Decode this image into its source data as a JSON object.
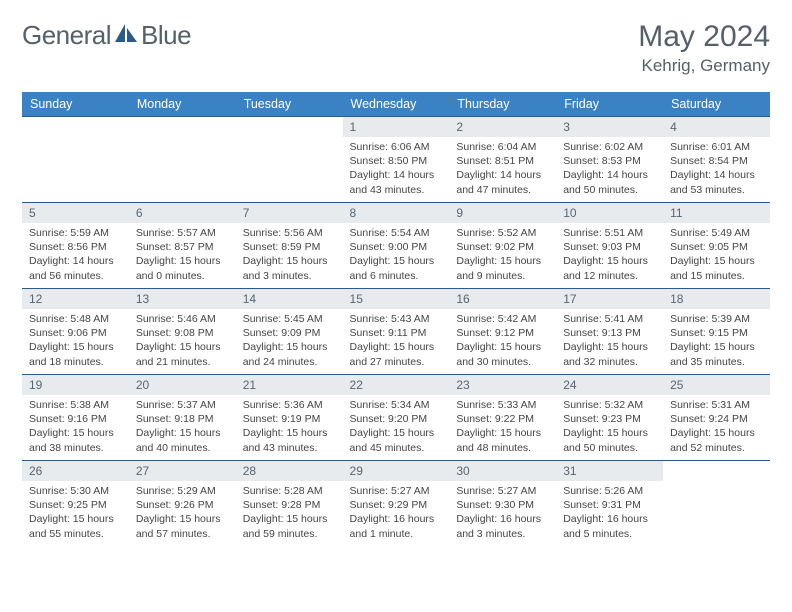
{
  "logo": {
    "word1": "General",
    "word2": "Blue"
  },
  "title": "May 2024",
  "location": "Kehrig, Germany",
  "colors": {
    "header_bg": "#3b82c4",
    "header_text": "#ffffff",
    "border": "#2a5a8a",
    "daynum_bg": "#e8ebee",
    "text": "#55606a",
    "logo_accent": "#2a5a8a"
  },
  "weekdays": [
    "Sunday",
    "Monday",
    "Tuesday",
    "Wednesday",
    "Thursday",
    "Friday",
    "Saturday"
  ],
  "weeks": [
    [
      {
        "n": "",
        "sr": "",
        "ss": "",
        "dl": ""
      },
      {
        "n": "",
        "sr": "",
        "ss": "",
        "dl": ""
      },
      {
        "n": "",
        "sr": "",
        "ss": "",
        "dl": ""
      },
      {
        "n": "1",
        "sr": "Sunrise: 6:06 AM",
        "ss": "Sunset: 8:50 PM",
        "dl": "Daylight: 14 hours and 43 minutes."
      },
      {
        "n": "2",
        "sr": "Sunrise: 6:04 AM",
        "ss": "Sunset: 8:51 PM",
        "dl": "Daylight: 14 hours and 47 minutes."
      },
      {
        "n": "3",
        "sr": "Sunrise: 6:02 AM",
        "ss": "Sunset: 8:53 PM",
        "dl": "Daylight: 14 hours and 50 minutes."
      },
      {
        "n": "4",
        "sr": "Sunrise: 6:01 AM",
        "ss": "Sunset: 8:54 PM",
        "dl": "Daylight: 14 hours and 53 minutes."
      }
    ],
    [
      {
        "n": "5",
        "sr": "Sunrise: 5:59 AM",
        "ss": "Sunset: 8:56 PM",
        "dl": "Daylight: 14 hours and 56 minutes."
      },
      {
        "n": "6",
        "sr": "Sunrise: 5:57 AM",
        "ss": "Sunset: 8:57 PM",
        "dl": "Daylight: 15 hours and 0 minutes."
      },
      {
        "n": "7",
        "sr": "Sunrise: 5:56 AM",
        "ss": "Sunset: 8:59 PM",
        "dl": "Daylight: 15 hours and 3 minutes."
      },
      {
        "n": "8",
        "sr": "Sunrise: 5:54 AM",
        "ss": "Sunset: 9:00 PM",
        "dl": "Daylight: 15 hours and 6 minutes."
      },
      {
        "n": "9",
        "sr": "Sunrise: 5:52 AM",
        "ss": "Sunset: 9:02 PM",
        "dl": "Daylight: 15 hours and 9 minutes."
      },
      {
        "n": "10",
        "sr": "Sunrise: 5:51 AM",
        "ss": "Sunset: 9:03 PM",
        "dl": "Daylight: 15 hours and 12 minutes."
      },
      {
        "n": "11",
        "sr": "Sunrise: 5:49 AM",
        "ss": "Sunset: 9:05 PM",
        "dl": "Daylight: 15 hours and 15 minutes."
      }
    ],
    [
      {
        "n": "12",
        "sr": "Sunrise: 5:48 AM",
        "ss": "Sunset: 9:06 PM",
        "dl": "Daylight: 15 hours and 18 minutes."
      },
      {
        "n": "13",
        "sr": "Sunrise: 5:46 AM",
        "ss": "Sunset: 9:08 PM",
        "dl": "Daylight: 15 hours and 21 minutes."
      },
      {
        "n": "14",
        "sr": "Sunrise: 5:45 AM",
        "ss": "Sunset: 9:09 PM",
        "dl": "Daylight: 15 hours and 24 minutes."
      },
      {
        "n": "15",
        "sr": "Sunrise: 5:43 AM",
        "ss": "Sunset: 9:11 PM",
        "dl": "Daylight: 15 hours and 27 minutes."
      },
      {
        "n": "16",
        "sr": "Sunrise: 5:42 AM",
        "ss": "Sunset: 9:12 PM",
        "dl": "Daylight: 15 hours and 30 minutes."
      },
      {
        "n": "17",
        "sr": "Sunrise: 5:41 AM",
        "ss": "Sunset: 9:13 PM",
        "dl": "Daylight: 15 hours and 32 minutes."
      },
      {
        "n": "18",
        "sr": "Sunrise: 5:39 AM",
        "ss": "Sunset: 9:15 PM",
        "dl": "Daylight: 15 hours and 35 minutes."
      }
    ],
    [
      {
        "n": "19",
        "sr": "Sunrise: 5:38 AM",
        "ss": "Sunset: 9:16 PM",
        "dl": "Daylight: 15 hours and 38 minutes."
      },
      {
        "n": "20",
        "sr": "Sunrise: 5:37 AM",
        "ss": "Sunset: 9:18 PM",
        "dl": "Daylight: 15 hours and 40 minutes."
      },
      {
        "n": "21",
        "sr": "Sunrise: 5:36 AM",
        "ss": "Sunset: 9:19 PM",
        "dl": "Daylight: 15 hours and 43 minutes."
      },
      {
        "n": "22",
        "sr": "Sunrise: 5:34 AM",
        "ss": "Sunset: 9:20 PM",
        "dl": "Daylight: 15 hours and 45 minutes."
      },
      {
        "n": "23",
        "sr": "Sunrise: 5:33 AM",
        "ss": "Sunset: 9:22 PM",
        "dl": "Daylight: 15 hours and 48 minutes."
      },
      {
        "n": "24",
        "sr": "Sunrise: 5:32 AM",
        "ss": "Sunset: 9:23 PM",
        "dl": "Daylight: 15 hours and 50 minutes."
      },
      {
        "n": "25",
        "sr": "Sunrise: 5:31 AM",
        "ss": "Sunset: 9:24 PM",
        "dl": "Daylight: 15 hours and 52 minutes."
      }
    ],
    [
      {
        "n": "26",
        "sr": "Sunrise: 5:30 AM",
        "ss": "Sunset: 9:25 PM",
        "dl": "Daylight: 15 hours and 55 minutes."
      },
      {
        "n": "27",
        "sr": "Sunrise: 5:29 AM",
        "ss": "Sunset: 9:26 PM",
        "dl": "Daylight: 15 hours and 57 minutes."
      },
      {
        "n": "28",
        "sr": "Sunrise: 5:28 AM",
        "ss": "Sunset: 9:28 PM",
        "dl": "Daylight: 15 hours and 59 minutes."
      },
      {
        "n": "29",
        "sr": "Sunrise: 5:27 AM",
        "ss": "Sunset: 9:29 PM",
        "dl": "Daylight: 16 hours and 1 minute."
      },
      {
        "n": "30",
        "sr": "Sunrise: 5:27 AM",
        "ss": "Sunset: 9:30 PM",
        "dl": "Daylight: 16 hours and 3 minutes."
      },
      {
        "n": "31",
        "sr": "Sunrise: 5:26 AM",
        "ss": "Sunset: 9:31 PM",
        "dl": "Daylight: 16 hours and 5 minutes."
      },
      {
        "n": "",
        "sr": "",
        "ss": "",
        "dl": ""
      }
    ]
  ]
}
